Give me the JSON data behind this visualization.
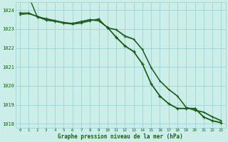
{
  "x": [
    0,
    1,
    2,
    3,
    4,
    5,
    6,
    7,
    8,
    9,
    10,
    11,
    12,
    13,
    14,
    15,
    16,
    17,
    18,
    19,
    20,
    21,
    22,
    23
  ],
  "series": [
    [
      1023.85,
      1023.85,
      1023.65,
      1023.55,
      1023.45,
      1023.35,
      1023.3,
      1023.4,
      1023.5,
      1023.45,
      1023.1,
      1022.55,
      1022.1,
      1021.8,
      1021.15,
      1020.1,
      1019.45,
      1019.05,
      1018.8,
      1018.8,
      1018.8,
      1018.35,
      1018.15,
      1018.05
    ],
    [
      1023.75,
      1023.8,
      1023.65,
      1023.45,
      1023.4,
      1023.3,
      1023.25,
      1023.3,
      1023.42,
      1023.55,
      1023.05,
      1022.95,
      1022.6,
      1022.45,
      1021.9,
      1020.95,
      1020.25,
      1019.8,
      1019.45,
      1018.85,
      1018.7,
      1018.6,
      1018.35,
      1018.15
    ],
    [
      1023.8,
      1023.82,
      1023.68,
      1023.5,
      1023.42,
      1023.33,
      1023.27,
      1023.35,
      1023.46,
      1023.5,
      1023.07,
      1022.98,
      1022.65,
      1022.48,
      1021.93,
      1020.98,
      1020.28,
      1019.83,
      1019.48,
      1018.88,
      1018.73,
      1018.63,
      1018.38,
      1018.18
    ],
    [
      1024.65,
      1024.72,
      1023.62,
      1023.52,
      1023.42,
      1023.33,
      1023.28,
      1023.38,
      1023.48,
      1023.43,
      1023.08,
      1022.58,
      1022.12,
      1021.82,
      1021.17,
      1020.12,
      1019.47,
      1019.07,
      1018.82,
      1018.82,
      1018.82,
      1018.37,
      1018.17,
      1018.07
    ]
  ],
  "ylim": [
    1017.8,
    1024.4
  ],
  "yticks": [
    1018,
    1019,
    1020,
    1021,
    1022,
    1023,
    1024
  ],
  "xlim": [
    -0.5,
    23.5
  ],
  "xlabel": "Graphe pression niveau de la mer (hPa)",
  "bg_color": "#cceee8",
  "grid_color": "#99cccc",
  "line_colors": [
    "#1a5c1a",
    "#1a5c1a",
    "#1a5c1a",
    "#1a5c1a"
  ],
  "tick_color": "#1a5c1a"
}
